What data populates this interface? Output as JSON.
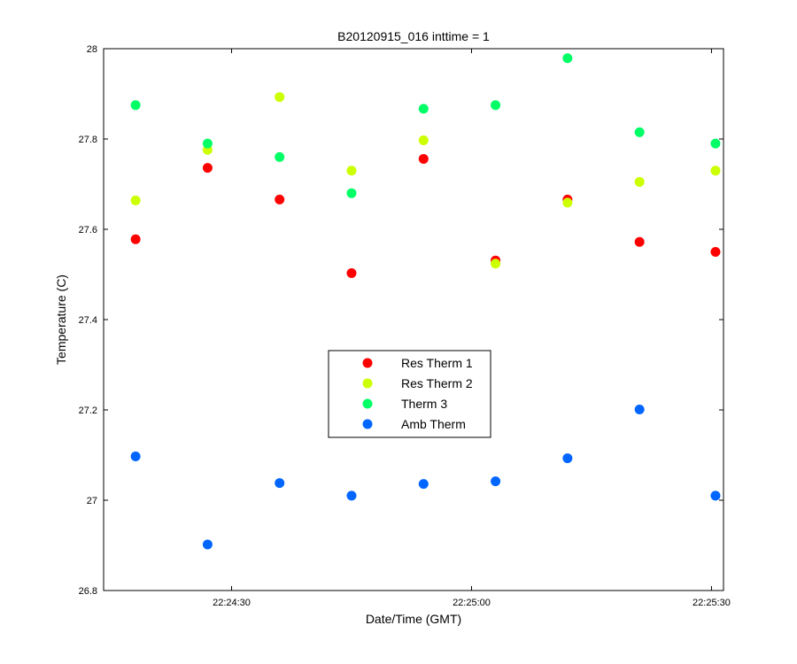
{
  "chart_data": {
    "type": "scatter",
    "title": "B20120915_016 inttime = 1",
    "xlabel": "Date/Time (GMT)",
    "ylabel": "Temperature (C)",
    "x_ticks": [
      "22:24:30",
      "22:25:00",
      "22:25:30"
    ],
    "x_tick_seconds": [
      30,
      60,
      90
    ],
    "xlim_seconds": [
      14,
      91.5
    ],
    "ylim": [
      26.8,
      28
    ],
    "y_ticks": [
      26.8,
      27,
      27.2,
      27.4,
      27.6,
      27.8,
      28
    ],
    "x_seconds": [
      18,
      27,
      36,
      45,
      54,
      63,
      72,
      81,
      90.5
    ],
    "grid": false,
    "legend_position": "center",
    "series": [
      {
        "name": "Res Therm 1",
        "color": "#ff0000",
        "values": [
          27.578,
          27.736,
          27.666,
          27.503,
          27.756,
          27.531,
          27.666,
          27.572,
          27.55
        ]
      },
      {
        "name": "Res Therm 2",
        "color": "#ccff00",
        "values": [
          27.664,
          27.776,
          27.893,
          27.73,
          27.797,
          27.524,
          27.659,
          27.705,
          27.73
        ]
      },
      {
        "name": "Therm 3",
        "color": "#00ff66",
        "values": [
          27.875,
          27.79,
          27.76,
          27.68,
          27.867,
          27.875,
          27.979,
          27.815,
          27.79
        ]
      },
      {
        "name": "Amb Therm",
        "color": "#0066ff",
        "values": [
          27.097,
          26.902,
          27.038,
          27.01,
          27.036,
          27.042,
          27.093,
          27.201,
          27.01
        ]
      }
    ]
  }
}
